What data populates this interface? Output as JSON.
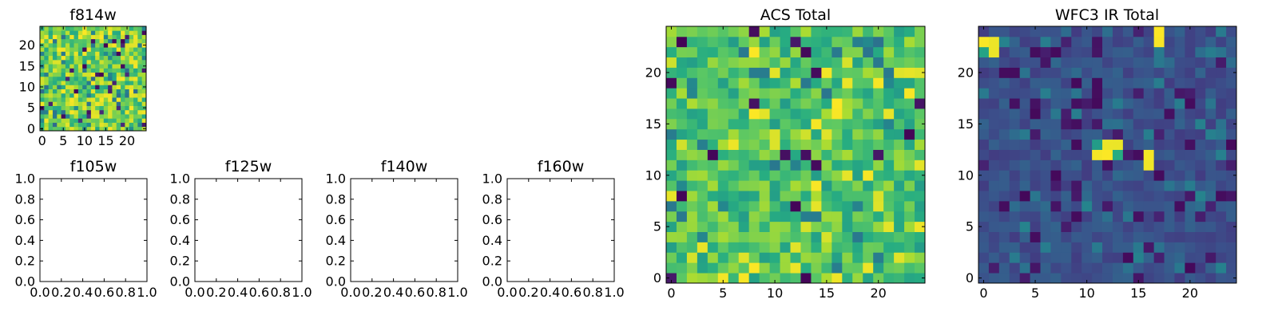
{
  "chart_data": [
    {
      "panel": "f814w",
      "type": "heatmap",
      "title": "f814w",
      "grid_size": 25,
      "colormap": "viridis",
      "xticks": [
        "0",
        "5",
        "10",
        "15",
        "20"
      ],
      "yticks": [
        "0",
        "5",
        "10",
        "15",
        "20"
      ],
      "xlim": [
        -0.5,
        24.5
      ],
      "ylim": [
        -0.5,
        24.5
      ],
      "value_range": [
        0,
        1
      ],
      "values": "25x25 random-looking field, mostly high values (yellow-green) with scattered low pixels; generated in script"
    },
    {
      "panel": "f105w",
      "type": "empty",
      "title": "f105w",
      "xticks": [
        "0.0",
        "0.2",
        "0.4",
        "0.6",
        "0.8",
        "1.0"
      ],
      "yticks": [
        "0.0",
        "0.2",
        "0.4",
        "0.6",
        "0.8",
        "1.0"
      ],
      "xlim": [
        0,
        1
      ],
      "ylim": [
        0,
        1
      ]
    },
    {
      "panel": "f125w",
      "type": "empty",
      "title": "f125w",
      "xticks": [
        "0.0",
        "0.2",
        "0.4",
        "0.6",
        "0.8",
        "1.0"
      ],
      "yticks": [
        "0.0",
        "0.2",
        "0.4",
        "0.6",
        "0.8",
        "1.0"
      ],
      "xlim": [
        0,
        1
      ],
      "ylim": [
        0,
        1
      ]
    },
    {
      "panel": "f140w",
      "type": "empty",
      "title": "f140w",
      "xticks": [
        "0.0",
        "0.2",
        "0.4",
        "0.6",
        "0.8",
        "1.0"
      ],
      "yticks": [
        "0.0",
        "0.2",
        "0.4",
        "0.6",
        "0.8",
        "1.0"
      ],
      "xlim": [
        0,
        1
      ],
      "ylim": [
        0,
        1
      ]
    },
    {
      "panel": "f160w",
      "type": "empty",
      "title": "f160w",
      "xticks": [
        "0.0",
        "0.2",
        "0.4",
        "0.6",
        "0.8",
        "1.0"
      ],
      "yticks": [
        "0.0",
        "0.2",
        "0.4",
        "0.6",
        "0.8",
        "1.0"
      ],
      "xlim": [
        0,
        1
      ],
      "ylim": [
        0,
        1
      ]
    },
    {
      "panel": "acs-total",
      "type": "heatmap",
      "title": "ACS Total",
      "grid_size": 25,
      "colormap": "viridis",
      "xticks": [
        "0",
        "5",
        "10",
        "15",
        "20"
      ],
      "yticks": [
        "0",
        "5",
        "10",
        "15",
        "20"
      ],
      "xlim": [
        -0.5,
        24.5
      ],
      "ylim": [
        -0.5,
        24.5
      ],
      "value_range": [
        0,
        1
      ]
    },
    {
      "panel": "wfc3-ir-total",
      "type": "heatmap",
      "title": "WFC3 IR Total",
      "grid_size": 25,
      "colormap": "viridis",
      "xticks": [
        "0",
        "5",
        "10",
        "15",
        "20"
      ],
      "yticks": [
        "0",
        "5",
        "10",
        "15",
        "20"
      ],
      "xlim": [
        -0.5,
        24.5
      ],
      "ylim": [
        -0.5,
        24.5
      ],
      "value_range": [
        0,
        1
      ],
      "hot_pixels": [
        {
          "x": 0,
          "y": 23
        },
        {
          "x": 1,
          "y": 23
        },
        {
          "x": 1,
          "y": 22
        },
        {
          "x": 17,
          "y": 24
        },
        {
          "x": 17,
          "y": 23
        },
        {
          "x": 12,
          "y": 13
        },
        {
          "x": 11,
          "y": 12
        },
        {
          "x": 12,
          "y": 12
        },
        {
          "x": 13,
          "y": 13
        },
        {
          "x": 16,
          "y": 12
        },
        {
          "x": 16,
          "y": 11
        }
      ]
    }
  ]
}
